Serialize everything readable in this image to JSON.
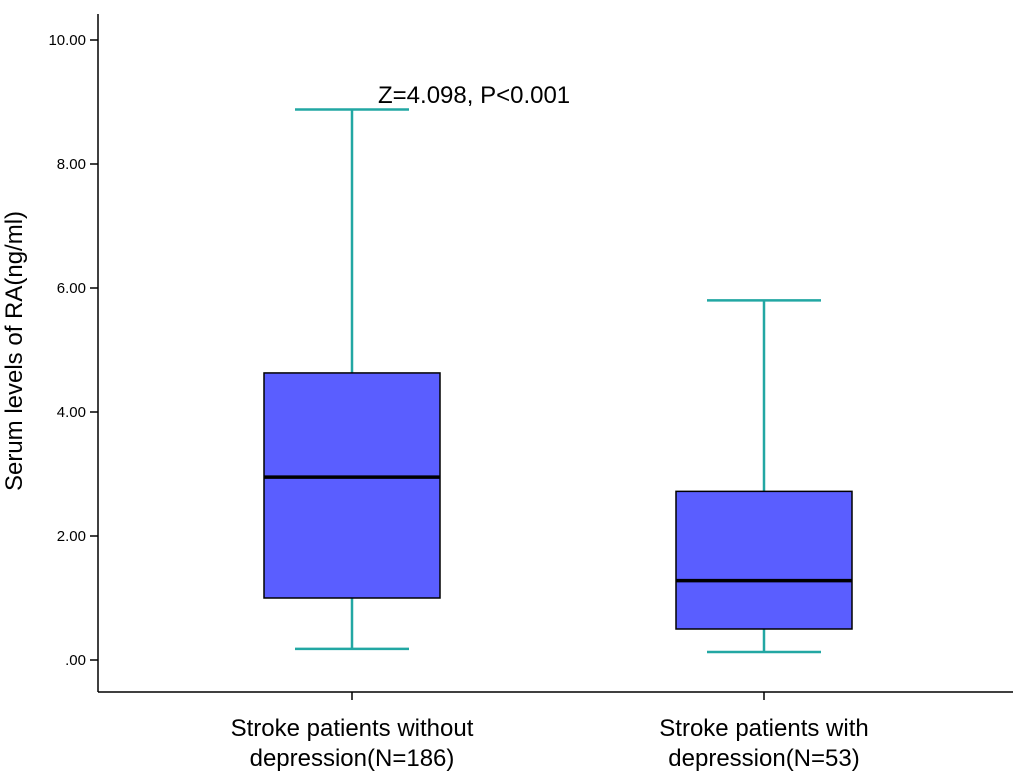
{
  "chart_data": {
    "type": "box",
    "ylabel": "Serum levels of RA(ng/ml)",
    "ylim": [
      0,
      10
    ],
    "yticks": [
      {
        "value": 0,
        "label": ".00"
      },
      {
        "value": 2,
        "label": "2.00"
      },
      {
        "value": 4,
        "label": "4.00"
      },
      {
        "value": 6,
        "label": "6.00"
      },
      {
        "value": 8,
        "label": "8.00"
      },
      {
        "value": 10,
        "label": "10.00"
      }
    ],
    "categories": [
      {
        "lines": [
          "Stroke patients without",
          "depression(N=186)"
        ]
      },
      {
        "lines": [
          "Stroke patients with",
          "depression(N=53)"
        ]
      }
    ],
    "boxes": [
      {
        "min": 0.18,
        "q1": 1.0,
        "median": 2.95,
        "q3": 4.63,
        "max": 8.88
      },
      {
        "min": 0.13,
        "q1": 0.5,
        "median": 1.28,
        "q3": 2.72,
        "max": 5.8
      }
    ],
    "annotation": "Z=4.098, P<0.001",
    "colors": {
      "box_fill": "#5a5eff",
      "whisker": "#22a7a3",
      "median": "#000000",
      "axis": "#000000"
    }
  }
}
